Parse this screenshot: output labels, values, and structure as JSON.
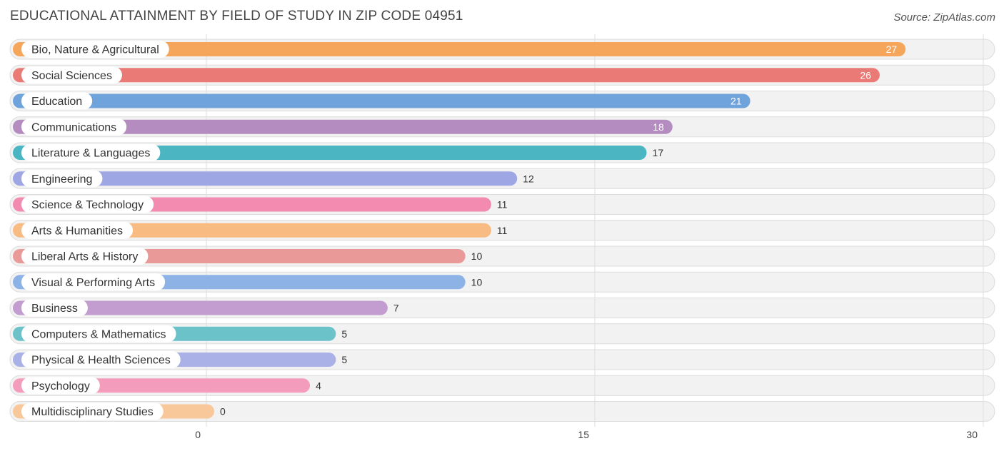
{
  "title": "EDUCATIONAL ATTAINMENT BY FIELD OF STUDY IN ZIP CODE 04951",
  "source": "Source: ZipAtlas.com",
  "chart_data": {
    "type": "bar",
    "orientation": "horizontal",
    "title": "EDUCATIONAL ATTAINMENT BY FIELD OF STUDY IN ZIP CODE 04951",
    "xlabel": "",
    "ylabel": "",
    "xlim": [
      0,
      30
    ],
    "ticks": [
      0,
      15,
      30
    ],
    "grid": true,
    "categories": [
      "Bio, Nature & Agricultural",
      "Social Sciences",
      "Education",
      "Communications",
      "Literature & Languages",
      "Engineering",
      "Science & Technology",
      "Arts & Humanities",
      "Liberal Arts & History",
      "Visual & Performing Arts",
      "Business",
      "Computers & Mathematics",
      "Physical & Health Sciences",
      "Psychology",
      "Multidisciplinary Studies"
    ],
    "values": [
      27,
      26,
      21,
      18,
      17,
      12,
      11,
      11,
      10,
      10,
      7,
      5,
      5,
      4,
      0
    ],
    "colors": [
      "#f5a65b",
      "#e97a76",
      "#6fa3dc",
      "#b48cc0",
      "#4bb5c1",
      "#9fa6e4",
      "#f38bb0",
      "#f8bb82",
      "#e99a98",
      "#8db3e6",
      "#c39cd0",
      "#6cc2c9",
      "#a9b1e6",
      "#f49cbb",
      "#f8c79a"
    ]
  }
}
